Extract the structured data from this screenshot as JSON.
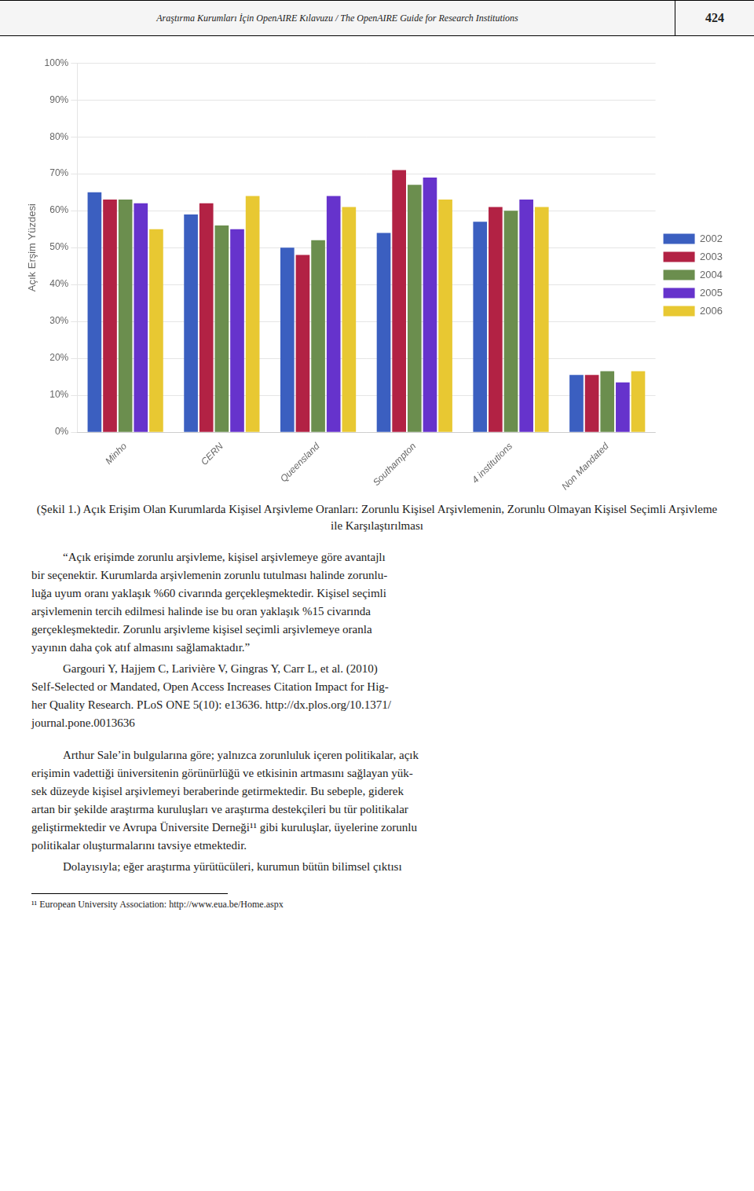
{
  "chart_data": {
    "type": "bar",
    "title": "(Şekil 1.) Açık Erişim Olan Kurumlarda Kişisel Arşivleme Oranları: Zorunlu Kişisel Arşivlemenin, Zorunlu Olmayan Kişisel Seçimli Arşivleme ile Karşılaştırılması",
    "ylabel": "Açık Erşim Yüzdesi",
    "categories": [
      "Minho",
      "CERN",
      "Queensland",
      "Southampton",
      "4 institutions",
      "Non Mandated"
    ],
    "series": [
      {
        "name": "2002",
        "color": "#3B5FC0",
        "values": [
          0.65,
          0.59,
          0.5,
          0.54,
          0.57,
          0.155
        ]
      },
      {
        "name": "2003",
        "color": "#B22244",
        "values": [
          0.63,
          0.62,
          0.48,
          0.71,
          0.61,
          0.155
        ]
      },
      {
        "name": "2004",
        "color": "#6B8E4E",
        "values": [
          0.63,
          0.56,
          0.52,
          0.67,
          0.6,
          0.165
        ]
      },
      {
        "name": "2005",
        "color": "#6633CC",
        "values": [
          0.62,
          0.55,
          0.64,
          0.69,
          0.63,
          0.135
        ]
      },
      {
        "name": "2006",
        "color": "#E8C832",
        "values": [
          0.55,
          0.64,
          0.61,
          0.63,
          0.61,
          0.165
        ]
      }
    ],
    "ylim": [
      0,
      1.0
    ],
    "yticks": [
      {
        "value": 0.0,
        "label": "0%"
      },
      {
        "value": 0.1,
        "label": "10%"
      },
      {
        "value": 0.2,
        "label": "20%"
      },
      {
        "value": 0.3,
        "label": "30%"
      },
      {
        "value": 0.4,
        "label": "40%"
      },
      {
        "value": 0.5,
        "label": "50%"
      },
      {
        "value": 0.6,
        "label": "60%"
      },
      {
        "value": 0.7,
        "label": "70%"
      },
      {
        "value": 0.8,
        "label": "80%"
      },
      {
        "value": 0.9,
        "label": "90%"
      },
      {
        "value": 1.0,
        "label": "100%"
      }
    ],
    "grid": true,
    "legend": "right",
    "annotations": [
      [
        "Araştırma Kurumları İçin OpenAIRE Kılavuzu / The OpenAIRE Guide for Research Institutions",
        "424"
      ],
      [
        "“Açık erişimde zorunlu arşivleme, kişisel arşivlemeye göre avantajlı",
        "bir seçenektir. Kurumlarda arşivlemenin zorunlu tutulması halinde zorunlu-",
        "luğa uyum oranı yaklaşık %60 civarında gerçekleşmektedir. Kişisel seçimli",
        "arşivlemenin tercih edilmesi halinde ise bu oran yaklaşık %15 civarında",
        "gerçekleşmektedir. Zorunlu arşivleme kişisel seçimli arşivlemeye oranla",
        "yayının daha çok atıf almasını sağlamaktadır.”"
      ],
      [
        "Gargouri Y, Hajjem C, Larivière V, Gingras Y, Carr L, et al. (2010)",
        "Self-Selected or Mandated, Open Access Increases Citation Impact for Hig-",
        "her Quality Research. PLoS ONE 5(10): e13636. http://dx.plos.org/10.1371/",
        "journal.pone.0013636"
      ],
      [
        "Arthur Sale’in bulgularına göre; yalnızca zorunluluk içeren politikalar, açık",
        "erişimin vadettiği üniversitenin görünürlüğü ve etkisinin artmasını sağlayan yük-",
        "sek düzeyde kişisel arşivlemeyi beraberinde getirmektedir. Bu sebeple, giderek",
        "artan bir şekilde araştırma kuruluşları ve araştırma destekçileri bu tür politikalar",
        "geliştirmektedir ve Avrupa Üniversite Derneği¹¹ gibi kuruluşlar, üyelerine zorunlu",
        "politikalar oluşturmalarını tavsiye etmektedir."
      ],
      [
        "Dolayısıyla; eğer araştırma yürütücüleri, kurumun bütün bilimsel çıktısı"
      ],
      [
        "¹¹ European University Association: http://www.eua.be/Home.aspx"
      ]
    ]
  }
}
